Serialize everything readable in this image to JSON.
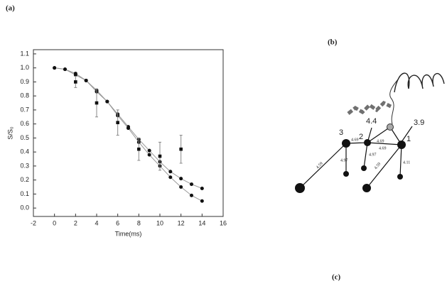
{
  "panels": {
    "a": "(a)",
    "b": "(b)",
    "c": "(c)"
  },
  "chart_data": {
    "type": "line",
    "xlabel": "Time(ms)",
    "ylabel": "S/S₀",
    "xlim": [
      -2,
      16
    ],
    "xticks": [
      -2,
      0,
      2,
      4,
      6,
      8,
      10,
      12,
      14,
      16
    ],
    "ylim": [
      -0.06,
      1.13
    ],
    "yticks": [
      {
        "value": 0,
        "label": "0.0"
      },
      0.1,
      0.2,
      0.3,
      0.4,
      0.5,
      0.6,
      0.7,
      0.8,
      0.9,
      {
        "value": 1,
        "label": "1.0"
      },
      1.1
    ],
    "series": [
      {
        "color": "#111111",
        "line_color": "#999999",
        "marker": "circle",
        "x": [
          0,
          1,
          2,
          3,
          4,
          5,
          6,
          7,
          8,
          9,
          10,
          11,
          12,
          13,
          14
        ],
        "values": [
          1.0,
          0.99,
          0.96,
          0.91,
          0.84,
          0.76,
          0.67,
          0.58,
          0.49,
          0.41,
          0.33,
          0.26,
          0.21,
          0.17,
          0.14
        ]
      },
      {
        "color": "#111111",
        "line_color": "#999999",
        "marker": "circle",
        "x": [
          0,
          1,
          2,
          3,
          4,
          5,
          6,
          7,
          8,
          9,
          10,
          11,
          12,
          13,
          14
        ],
        "values": [
          1.0,
          0.99,
          0.95,
          0.91,
          0.83,
          0.76,
          0.66,
          0.57,
          0.47,
          0.38,
          0.3,
          0.22,
          0.15,
          0.09,
          0.05
        ]
      },
      {
        "color": "#111111",
        "marker": "square",
        "x": [
          2,
          4,
          6,
          8,
          10,
          12
        ],
        "values": [
          0.9,
          0.75,
          0.61,
          0.42,
          0.37,
          0.42
        ],
        "errors": [
          0.04,
          0.1,
          0.09,
          0.08,
          0.1,
          0.1
        ]
      }
    ]
  },
  "diagram": {
    "atoms": [
      "3",
      "2",
      "1"
    ],
    "vectors": [
      "4.4",
      "3.9"
    ],
    "bonds": [
      "4.69",
      "4.69",
      "4.69",
      "4.97",
      "4.97",
      "4.59",
      "4.59",
      "4.11"
    ]
  }
}
